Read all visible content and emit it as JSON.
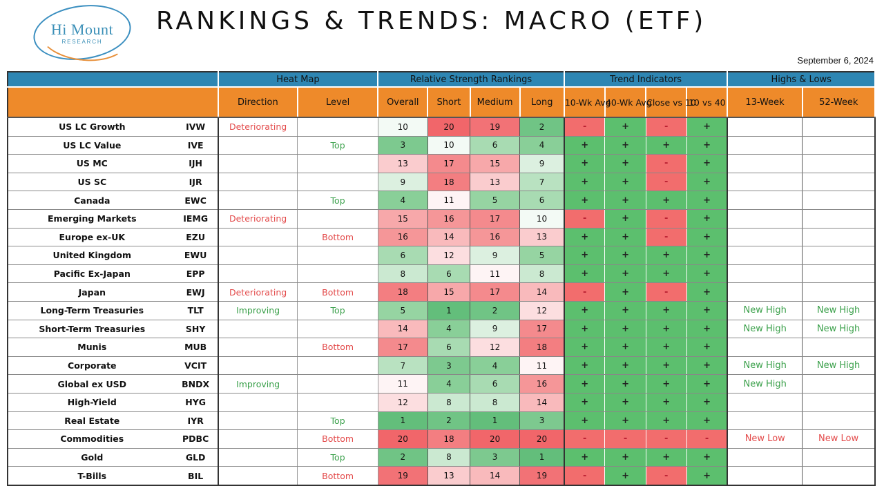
{
  "header": {
    "logo_name": "Hi Mount",
    "logo_sub": "RESEARCH",
    "title": "RANKINGS & TRENDS: MACRO (ETF)",
    "date": "September 6, 2024"
  },
  "groups": {
    "heat_map": "Heat Map",
    "rs": "Relative Strength Rankings",
    "trend": "Trend Indicators",
    "hl": "Highs & Lows"
  },
  "columns": {
    "direction": "Direction",
    "level": "Level",
    "overall": "Overall",
    "short": "Short",
    "medium": "Medium",
    "long": "Long",
    "wk10": "10-Wk Avg",
    "wk40": "40-Wk Avg",
    "close10": "Close vs 10",
    "ten_vs_40": "10 vs 40",
    "week13": "13-Week",
    "week52": "52-Week"
  },
  "colors": {
    "header_blue": "#2e86b3",
    "header_orange": "#ee8a2a",
    "trend_plus": "#5cbf6e",
    "trend_minus": "#f26d6d",
    "text_green": "#3aa04a",
    "text_red": "#e34a4a"
  },
  "rows": [
    {
      "name": "US LC Growth",
      "ticker": "IVW",
      "direction": "Deteriorating",
      "level": "",
      "overall": 10,
      "short": 20,
      "medium": 19,
      "long": 2,
      "wk10": "-",
      "wk40": "+",
      "close10": "-",
      "ten40": "+",
      "w13": "",
      "w52": ""
    },
    {
      "name": "US LC Value",
      "ticker": "IVE",
      "direction": "",
      "level": "Top",
      "overall": 3,
      "short": 10,
      "medium": 6,
      "long": 4,
      "wk10": "+",
      "wk40": "+",
      "close10": "+",
      "ten40": "+",
      "w13": "",
      "w52": ""
    },
    {
      "name": "US MC",
      "ticker": "IJH",
      "direction": "",
      "level": "",
      "overall": 13,
      "short": 17,
      "medium": 15,
      "long": 9,
      "wk10": "+",
      "wk40": "+",
      "close10": "-",
      "ten40": "+",
      "w13": "",
      "w52": ""
    },
    {
      "name": "US SC",
      "ticker": "IJR",
      "direction": "",
      "level": "",
      "overall": 9,
      "short": 18,
      "medium": 13,
      "long": 7,
      "wk10": "+",
      "wk40": "+",
      "close10": "-",
      "ten40": "+",
      "w13": "",
      "w52": ""
    },
    {
      "name": "Canada",
      "ticker": "EWC",
      "direction": "",
      "level": "Top",
      "overall": 4,
      "short": 11,
      "medium": 5,
      "long": 6,
      "wk10": "+",
      "wk40": "+",
      "close10": "+",
      "ten40": "+",
      "w13": "",
      "w52": ""
    },
    {
      "name": "Emerging Markets",
      "ticker": "IEMG",
      "direction": "Deteriorating",
      "level": "",
      "overall": 15,
      "short": 16,
      "medium": 17,
      "long": 10,
      "wk10": "-",
      "wk40": "+",
      "close10": "-",
      "ten40": "+",
      "w13": "",
      "w52": ""
    },
    {
      "name": "Europe ex-UK",
      "ticker": "EZU",
      "direction": "",
      "level": "Bottom",
      "overall": 16,
      "short": 14,
      "medium": 16,
      "long": 13,
      "wk10": "+",
      "wk40": "+",
      "close10": "-",
      "ten40": "+",
      "w13": "",
      "w52": ""
    },
    {
      "name": "United Kingdom",
      "ticker": "EWU",
      "direction": "",
      "level": "",
      "overall": 6,
      "short": 12,
      "medium": 9,
      "long": 5,
      "wk10": "+",
      "wk40": "+",
      "close10": "+",
      "ten40": "+",
      "w13": "",
      "w52": ""
    },
    {
      "name": "Pacific Ex-Japan",
      "ticker": "EPP",
      "direction": "",
      "level": "",
      "overall": 8,
      "short": 6,
      "medium": 11,
      "long": 8,
      "wk10": "+",
      "wk40": "+",
      "close10": "+",
      "ten40": "+",
      "w13": "",
      "w52": ""
    },
    {
      "name": "Japan",
      "ticker": "EWJ",
      "direction": "Deteriorating",
      "level": "Bottom",
      "overall": 18,
      "short": 15,
      "medium": 17,
      "long": 14,
      "wk10": "-",
      "wk40": "+",
      "close10": "-",
      "ten40": "+",
      "w13": "",
      "w52": ""
    },
    {
      "name": "Long-Term Treasuries",
      "ticker": "TLT",
      "direction": "Improving",
      "level": "Top",
      "overall": 5,
      "short": 1,
      "medium": 2,
      "long": 12,
      "wk10": "+",
      "wk40": "+",
      "close10": "+",
      "ten40": "+",
      "w13": "New High",
      "w52": "New High"
    },
    {
      "name": "Short-Term Treasuries",
      "ticker": "SHY",
      "direction": "",
      "level": "",
      "overall": 14,
      "short": 4,
      "medium": 9,
      "long": 17,
      "wk10": "+",
      "wk40": "+",
      "close10": "+",
      "ten40": "+",
      "w13": "New High",
      "w52": "New High"
    },
    {
      "name": "Munis",
      "ticker": "MUB",
      "direction": "",
      "level": "Bottom",
      "overall": 17,
      "short": 6,
      "medium": 12,
      "long": 18,
      "wk10": "+",
      "wk40": "+",
      "close10": "+",
      "ten40": "+",
      "w13": "",
      "w52": ""
    },
    {
      "name": "Corporate",
      "ticker": "VCIT",
      "direction": "",
      "level": "",
      "overall": 7,
      "short": 3,
      "medium": 4,
      "long": 11,
      "wk10": "+",
      "wk40": "+",
      "close10": "+",
      "ten40": "+",
      "w13": "New High",
      "w52": "New High"
    },
    {
      "name": "Global ex USD",
      "ticker": "BNDX",
      "direction": "Improving",
      "level": "",
      "overall": 11,
      "short": 4,
      "medium": 6,
      "long": 16,
      "wk10": "+",
      "wk40": "+",
      "close10": "+",
      "ten40": "+",
      "w13": "New High",
      "w52": ""
    },
    {
      "name": "High-Yield",
      "ticker": "HYG",
      "direction": "",
      "level": "",
      "overall": 12,
      "short": 8,
      "medium": 8,
      "long": 14,
      "wk10": "+",
      "wk40": "+",
      "close10": "+",
      "ten40": "+",
      "w13": "",
      "w52": ""
    },
    {
      "name": "Real Estate",
      "ticker": "IYR",
      "direction": "",
      "level": "Top",
      "overall": 1,
      "short": 2,
      "medium": 1,
      "long": 3,
      "wk10": "+",
      "wk40": "+",
      "close10": "+",
      "ten40": "+",
      "w13": "",
      "w52": ""
    },
    {
      "name": "Commodities",
      "ticker": "PDBC",
      "direction": "",
      "level": "Bottom",
      "overall": 20,
      "short": 18,
      "medium": 20,
      "long": 20,
      "wk10": "-",
      "wk40": "-",
      "close10": "-",
      "ten40": "-",
      "w13": "New Low",
      "w52": "New Low"
    },
    {
      "name": "Gold",
      "ticker": "GLD",
      "direction": "",
      "level": "Top",
      "overall": 2,
      "short": 8,
      "medium": 3,
      "long": 1,
      "wk10": "+",
      "wk40": "+",
      "close10": "+",
      "ten40": "+",
      "w13": "",
      "w52": ""
    },
    {
      "name": "T-Bills",
      "ticker": "BIL",
      "direction": "",
      "level": "Bottom",
      "overall": 19,
      "short": 13,
      "medium": 14,
      "long": 19,
      "wk10": "-",
      "wk40": "+",
      "close10": "-",
      "ten40": "+",
      "w13": "",
      "w52": ""
    }
  ]
}
